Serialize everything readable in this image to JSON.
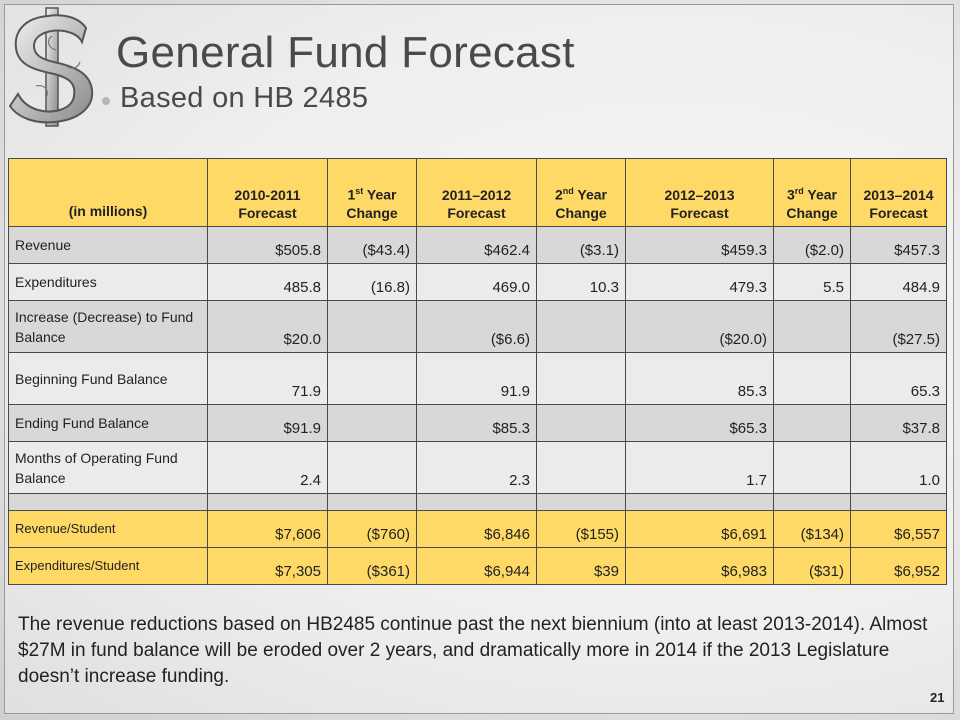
{
  "slide": {
    "title": "General Fund Forecast",
    "subtitle": "Based on HB 2485",
    "page_number": "21",
    "note": "The revenue reductions based on HB2485 continue past the next biennium (into at least 2013-2014).  Almost $27M in fund balance will be eroded over 2 years, and dramatically more in 2014 if the 2013 Legislature doesn’t increase funding.",
    "logo_text": "$"
  },
  "table": {
    "headers": {
      "c0": "(in millions)",
      "c1_a": "2010-2011",
      "c1_b": "Forecast",
      "c2_a": "1",
      "c2_sup": "st",
      "c2_b": " Year",
      "c2_c": "Change",
      "c3_a": "2011–2012",
      "c3_b": "Forecast",
      "c4_a": "2",
      "c4_sup": "nd",
      "c4_b": " Year",
      "c4_c": "Change",
      "c5_a": "2012–2013",
      "c5_b": "Forecast",
      "c6_a": "3",
      "c6_sup": "rd",
      "c6_b": " Year",
      "c6_c": "Change",
      "c7_a": "2013–2014",
      "c7_b": "Forecast"
    },
    "rows": [
      {
        "label": "Revenue",
        "values": [
          "$505.8",
          "($43.4)",
          "$462.4",
          "($3.1)",
          "$459.3",
          "($2.0)",
          "$457.3"
        ]
      },
      {
        "label": "Expenditures",
        "values": [
          "485.8",
          "(16.8)",
          "469.0",
          "10.3",
          "479.3",
          "5.5",
          "484.9"
        ]
      },
      {
        "label": "Increase (Decrease) to Fund Balance",
        "values": [
          "$20.0",
          "",
          "($6.6)",
          "",
          "($20.0)",
          "",
          "($27.5)"
        ]
      },
      {
        "label": "Beginning Fund Balance",
        "values": [
          "71.9",
          "",
          "91.9",
          "",
          "85.3",
          "",
          "65.3"
        ]
      },
      {
        "label": "Ending Fund Balance",
        "values": [
          "$91.9",
          "",
          "$85.3",
          "",
          "$65.3",
          "",
          "$37.8"
        ]
      },
      {
        "label": "Months of Operating Fund Balance",
        "values": [
          "2.4",
          "",
          "2.3",
          "",
          "1.7",
          "",
          "1.0"
        ]
      },
      {
        "label": "",
        "values": [
          "",
          "",
          "",
          "",
          "",
          "",
          ""
        ]
      },
      {
        "label": "Revenue/Student",
        "values": [
          "$7,606",
          "($760)",
          "$6,846",
          "($155)",
          "$6,691",
          "($134)",
          "$6,557"
        ]
      },
      {
        "label": "Expenditures/Student",
        "values": [
          "$7,305",
          "($361)",
          "$6,944",
          "$39",
          "$6,983",
          "($31)",
          "$6,952"
        ]
      }
    ]
  },
  "colors": {
    "header_bg": "#ffd966",
    "row_dark": "#d8d8d8",
    "row_light": "#ebebeb",
    "title_text": "#4a4a4a"
  }
}
